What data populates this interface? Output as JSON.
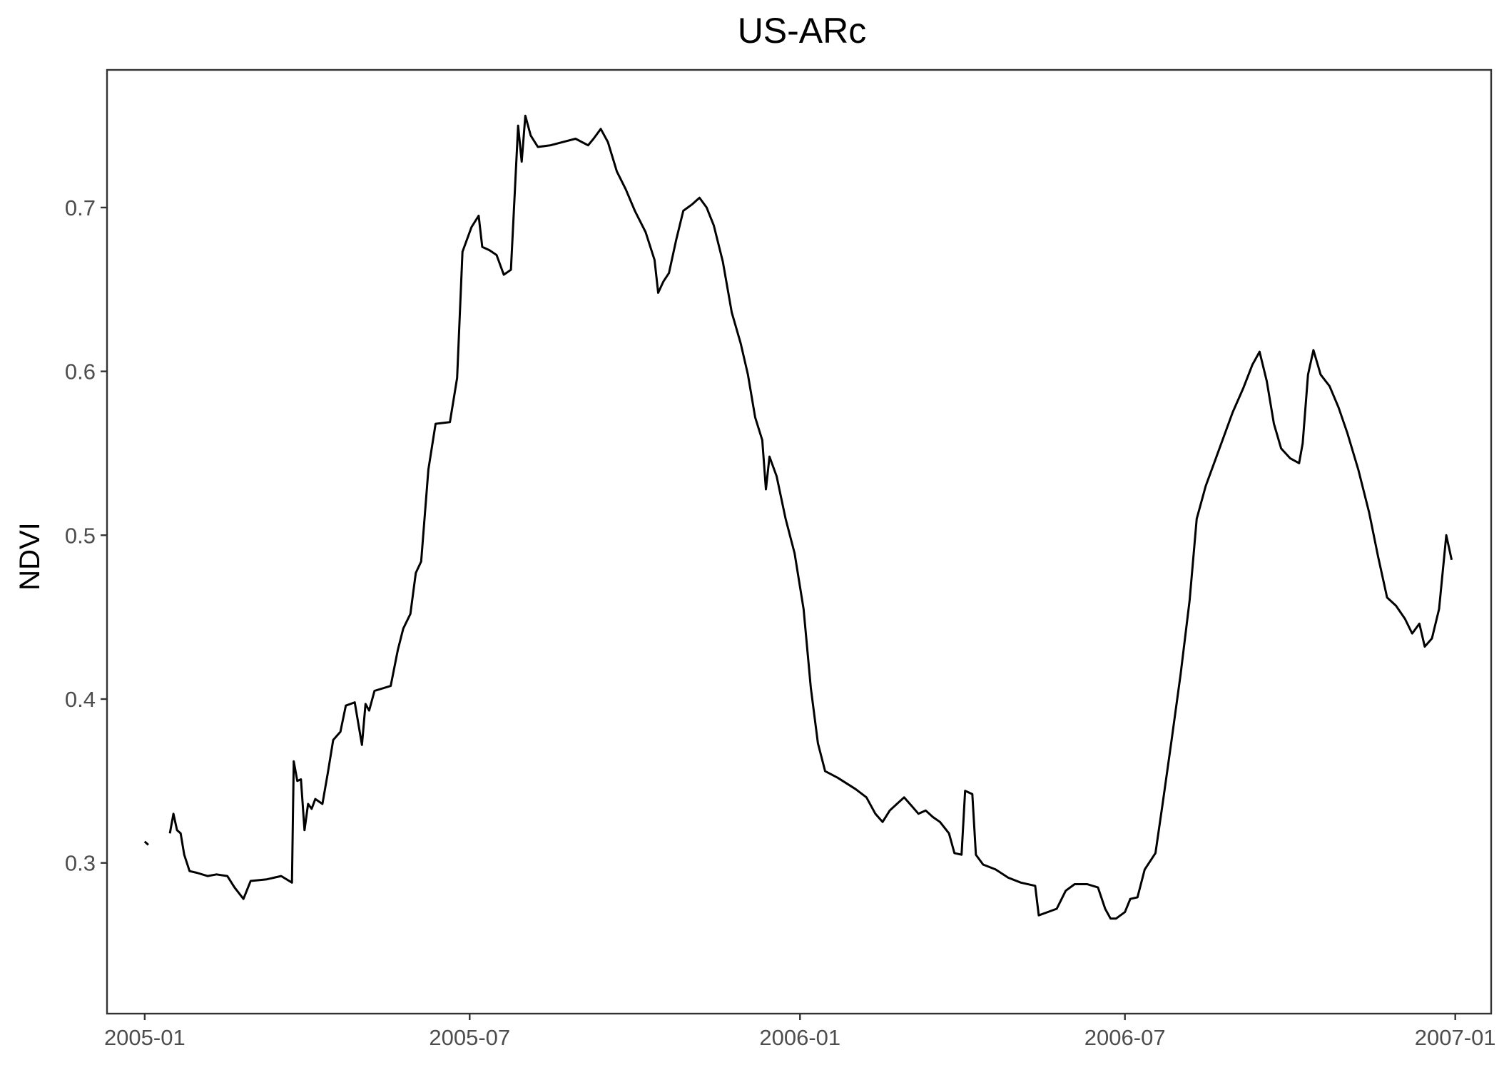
{
  "chart_data": {
    "type": "line",
    "title": "US-ARc",
    "xlabel": "",
    "ylabel": "NDVI",
    "x_ticks": [
      "2005-01",
      "2005-07",
      "2006-01",
      "2006-07",
      "2007-01"
    ],
    "y_ticks": [
      "0.3",
      "0.4",
      "0.5",
      "0.6",
      "0.7"
    ],
    "xlim": [
      "2004-12-11",
      "2007-01-21"
    ],
    "ylim": [
      0.208,
      0.784
    ],
    "grid": false,
    "line_color": "#000000",
    "series": [
      {
        "segments": [
          [
            [
              "2005-01-01",
              0.313
            ],
            [
              "2005-01-03",
              0.311
            ]
          ],
          [
            [
              "2005-01-15",
              0.318
            ],
            [
              "2005-01-17",
              0.33
            ],
            [
              "2005-01-19",
              0.32
            ],
            [
              "2005-01-21",
              0.318
            ],
            [
              "2005-01-23",
              0.305
            ],
            [
              "2005-01-26",
              0.295
            ],
            [
              "2005-01-30",
              0.294
            ],
            [
              "2005-02-05",
              0.292
            ],
            [
              "2005-02-10",
              0.293
            ],
            [
              "2005-02-16",
              0.292
            ],
            [
              "2005-02-20",
              0.285
            ],
            [
              "2005-02-25",
              0.278
            ],
            [
              "2005-03-01",
              0.289
            ],
            [
              "2005-03-10",
              0.29
            ],
            [
              "2005-03-18",
              0.292
            ],
            [
              "2005-03-24",
              0.288
            ],
            [
              "2005-03-25",
              0.362
            ],
            [
              "2005-03-27",
              0.35
            ],
            [
              "2005-03-29",
              0.351
            ],
            [
              "2005-03-31",
              0.32
            ],
            [
              "2005-04-02",
              0.336
            ],
            [
              "2005-04-04",
              0.333
            ],
            [
              "2005-04-06",
              0.339
            ],
            [
              "2005-04-10",
              0.336
            ],
            [
              "2005-04-13",
              0.355
            ],
            [
              "2005-04-16",
              0.375
            ],
            [
              "2005-04-20",
              0.38
            ],
            [
              "2005-04-23",
              0.396
            ],
            [
              "2005-04-28",
              0.398
            ],
            [
              "2005-05-02",
              0.372
            ],
            [
              "2005-05-04",
              0.397
            ],
            [
              "2005-05-06",
              0.393
            ],
            [
              "2005-05-09",
              0.405
            ],
            [
              "2005-05-18",
              0.408
            ],
            [
              "2005-05-22",
              0.43
            ],
            [
              "2005-05-25",
              0.443
            ],
            [
              "2005-05-29",
              0.452
            ],
            [
              "2005-06-01",
              0.477
            ],
            [
              "2005-06-04",
              0.484
            ],
            [
              "2005-06-08",
              0.54
            ],
            [
              "2005-06-12",
              0.568
            ],
            [
              "2005-06-20",
              0.569
            ],
            [
              "2005-06-24",
              0.596
            ],
            [
              "2005-06-27",
              0.673
            ],
            [
              "2005-07-02",
              0.688
            ],
            [
              "2005-07-06",
              0.695
            ],
            [
              "2005-07-08",
              0.676
            ],
            [
              "2005-07-12",
              0.674
            ],
            [
              "2005-07-16",
              0.671
            ],
            [
              "2005-07-20",
              0.659
            ],
            [
              "2005-07-24",
              0.662
            ],
            [
              "2005-07-28",
              0.75
            ],
            [
              "2005-07-30",
              0.728
            ],
            [
              "2005-08-01",
              0.756
            ],
            [
              "2005-08-04",
              0.744
            ],
            [
              "2005-08-08",
              0.737
            ],
            [
              "2005-08-15",
              0.738
            ],
            [
              "2005-08-22",
              0.74
            ],
            [
              "2005-08-29",
              0.742
            ],
            [
              "2005-09-05",
              0.738
            ],
            [
              "2005-09-08",
              0.742
            ],
            [
              "2005-09-12",
              0.748
            ],
            [
              "2005-09-16",
              0.74
            ],
            [
              "2005-09-21",
              0.722
            ],
            [
              "2005-09-26",
              0.711
            ],
            [
              "2005-10-01",
              0.698
            ],
            [
              "2005-10-07",
              0.685
            ],
            [
              "2005-10-12",
              0.668
            ],
            [
              "2005-10-14",
              0.648
            ],
            [
              "2005-10-17",
              0.655
            ],
            [
              "2005-10-20",
              0.66
            ],
            [
              "2005-10-24",
              0.68
            ],
            [
              "2005-10-28",
              0.698
            ],
            [
              "2005-11-02",
              0.702
            ],
            [
              "2005-11-06",
              0.706
            ],
            [
              "2005-11-10",
              0.7
            ],
            [
              "2005-11-14",
              0.689
            ],
            [
              "2005-11-19",
              0.667
            ],
            [
              "2005-11-24",
              0.636
            ],
            [
              "2005-11-29",
              0.617
            ],
            [
              "2005-12-03",
              0.598
            ],
            [
              "2005-12-07",
              0.572
            ],
            [
              "2005-12-11",
              0.558
            ],
            [
              "2005-12-13",
              0.528
            ],
            [
              "2005-12-15",
              0.548
            ],
            [
              "2005-12-19",
              0.536
            ],
            [
              "2005-12-24",
              0.51
            ],
            [
              "2005-12-29",
              0.489
            ],
            [
              "2006-01-03",
              0.455
            ],
            [
              "2006-01-07",
              0.407
            ],
            [
              "2006-01-11",
              0.373
            ],
            [
              "2006-01-15",
              0.356
            ],
            [
              "2006-01-22",
              0.352
            ],
            [
              "2006-02-01",
              0.345
            ],
            [
              "2006-02-07",
              0.34
            ],
            [
              "2006-02-12",
              0.33
            ],
            [
              "2006-02-16",
              0.325
            ],
            [
              "2006-02-20",
              0.332
            ],
            [
              "2006-02-24",
              0.336
            ],
            [
              "2006-02-28",
              0.34
            ],
            [
              "2006-03-04",
              0.335
            ],
            [
              "2006-03-08",
              0.33
            ],
            [
              "2006-03-12",
              0.332
            ],
            [
              "2006-03-16",
              0.328
            ],
            [
              "2006-03-20",
              0.325
            ],
            [
              "2006-03-25",
              0.318
            ],
            [
              "2006-03-28",
              0.306
            ],
            [
              "2006-04-01",
              0.305
            ],
            [
              "2006-04-03",
              0.344
            ],
            [
              "2006-04-07",
              0.342
            ],
            [
              "2006-04-09",
              0.305
            ],
            [
              "2006-04-13",
              0.299
            ],
            [
              "2006-04-20",
              0.296
            ],
            [
              "2006-04-27",
              0.291
            ],
            [
              "2006-05-04",
              0.288
            ],
            [
              "2006-05-12",
              0.286
            ],
            [
              "2006-05-14",
              0.268
            ],
            [
              "2006-05-19",
              0.27
            ],
            [
              "2006-05-24",
              0.272
            ],
            [
              "2006-05-29",
              0.283
            ],
            [
              "2006-06-03",
              0.287
            ],
            [
              "2006-06-10",
              0.287
            ],
            [
              "2006-06-16",
              0.285
            ],
            [
              "2006-06-20",
              0.272
            ],
            [
              "2006-06-23",
              0.266
            ],
            [
              "2006-06-26",
              0.266
            ],
            [
              "2006-07-01",
              0.27
            ],
            [
              "2006-07-04",
              0.278
            ],
            [
              "2006-07-08",
              0.279
            ],
            [
              "2006-07-12",
              0.296
            ],
            [
              "2006-07-18",
              0.306
            ],
            [
              "2006-07-22",
              0.336
            ],
            [
              "2006-07-27",
              0.375
            ],
            [
              "2006-08-01",
              0.415
            ],
            [
              "2006-08-06",
              0.46
            ],
            [
              "2006-08-10",
              0.51
            ],
            [
              "2006-08-15",
              0.53
            ],
            [
              "2006-08-20",
              0.545
            ],
            [
              "2006-08-25",
              0.56
            ],
            [
              "2006-08-30",
              0.575
            ],
            [
              "2006-09-05",
              0.59
            ],
            [
              "2006-09-10",
              0.604
            ],
            [
              "2006-09-14",
              0.612
            ],
            [
              "2006-09-18",
              0.594
            ],
            [
              "2006-09-22",
              0.568
            ],
            [
              "2006-09-26",
              0.553
            ],
            [
              "2006-10-01",
              0.547
            ],
            [
              "2006-10-06",
              0.544
            ],
            [
              "2006-10-08",
              0.556
            ],
            [
              "2006-10-11",
              0.598
            ],
            [
              "2006-10-14",
              0.613
            ],
            [
              "2006-10-18",
              0.598
            ],
            [
              "2006-10-23",
              0.591
            ],
            [
              "2006-10-28",
              0.578
            ],
            [
              "2006-11-02",
              0.562
            ],
            [
              "2006-11-08",
              0.54
            ],
            [
              "2006-11-14",
              0.514
            ],
            [
              "2006-11-19",
              0.487
            ],
            [
              "2006-11-24",
              0.462
            ],
            [
              "2006-11-29",
              0.457
            ],
            [
              "2006-12-04",
              0.449
            ],
            [
              "2006-12-08",
              0.44
            ],
            [
              "2006-12-12",
              0.446
            ],
            [
              "2006-12-15",
              0.432
            ],
            [
              "2006-12-19",
              0.437
            ],
            [
              "2006-12-23",
              0.455
            ],
            [
              "2006-12-27",
              0.5
            ],
            [
              "2006-12-30",
              0.485
            ]
          ]
        ]
      }
    ]
  }
}
